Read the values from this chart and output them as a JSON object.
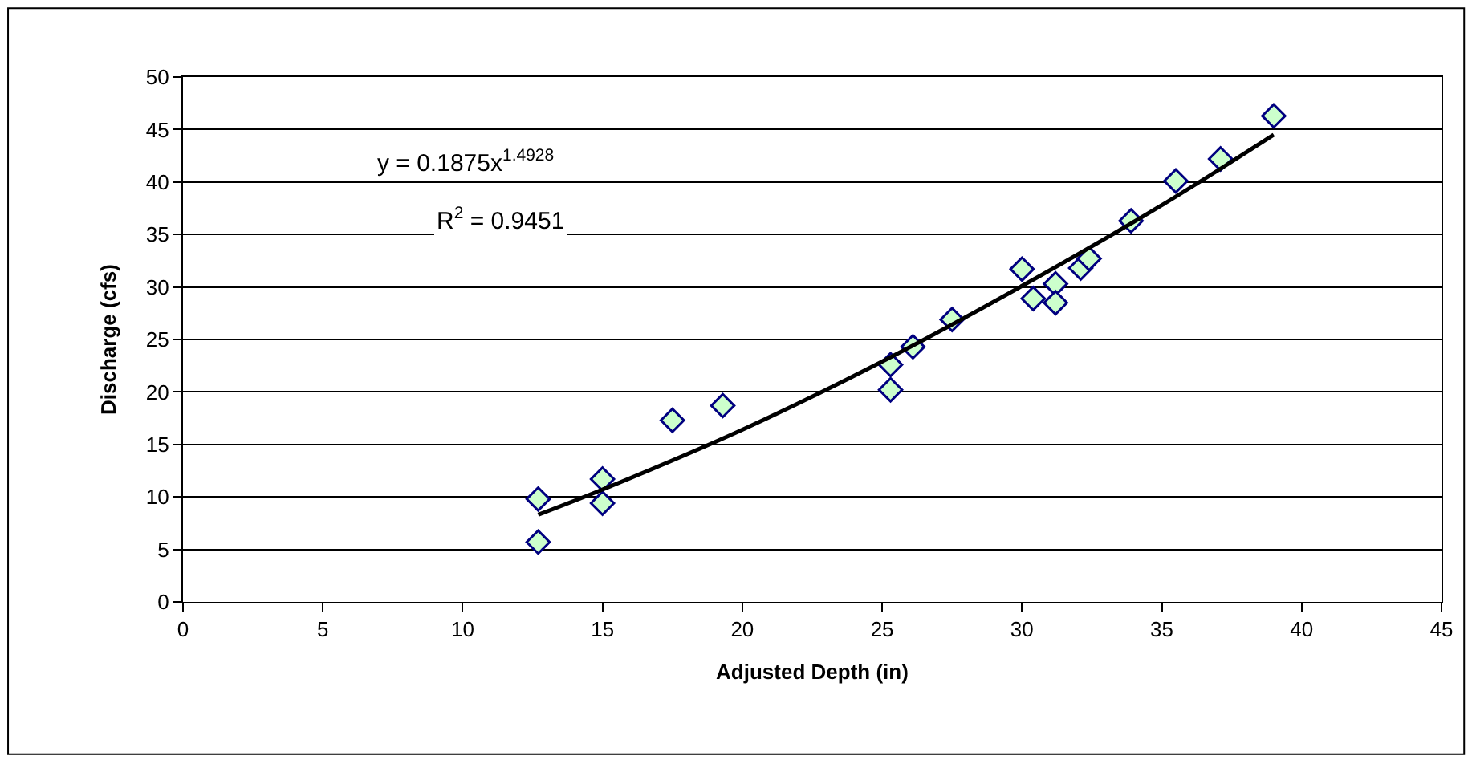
{
  "chart_data": {
    "type": "scatter",
    "xlabel": "Adjusted Depth (in)",
    "ylabel": "Discharge (cfs)",
    "xlim": [
      0,
      45
    ],
    "xticks": [
      0,
      5,
      10,
      15,
      20,
      25,
      30,
      35,
      40,
      45
    ],
    "ylim": [
      0,
      50
    ],
    "yticks": [
      0,
      5,
      10,
      15,
      20,
      25,
      30,
      35,
      40,
      45,
      50
    ],
    "grid": "y",
    "legend": false,
    "annotations": [
      "y = 0.1875x$^{1.4928}$",
      "R$^{2}$ = 0.9451"
    ],
    "series": [
      {
        "marker": "diamond",
        "color": "#ccffcc",
        "x": [
          12.7,
          12.7,
          15.0,
          15.0,
          17.5,
          19.3,
          25.3,
          25.3,
          26.1,
          27.5,
          30.0,
          30.4,
          31.2,
          31.2,
          32.1,
          32.4,
          33.9,
          35.5,
          37.1,
          39.0
        ],
        "values": [
          9.8,
          5.7,
          11.7,
          9.4,
          17.3,
          18.7,
          22.6,
          20.2,
          24.3,
          26.9,
          31.7,
          28.9,
          30.3,
          28.5,
          31.8,
          32.7,
          36.3,
          40.1,
          42.2,
          46.3
        ]
      },
      {
        "type": "line",
        "marker": "none",
        "color": "#000000",
        "line_style": "solid",
        "x": [
          12.7,
          15,
          20,
          25,
          30,
          35,
          39
        ],
        "values": [
          8.3,
          10.7,
          16.4,
          22.9,
          30.1,
          37.8,
          44.5
        ]
      }
    ]
  }
}
